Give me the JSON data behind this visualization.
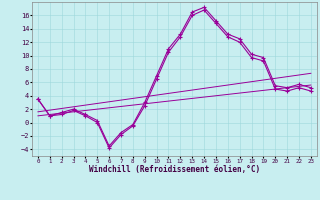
{
  "xlabel": "Windchill (Refroidissement éolien,°C)",
  "background_color": "#c8eef0",
  "grid_color": "#9dd8dc",
  "line_color": "#990099",
  "hours": [
    0,
    1,
    2,
    3,
    4,
    5,
    6,
    7,
    8,
    9,
    10,
    11,
    12,
    13,
    14,
    15,
    16,
    17,
    18,
    19,
    20,
    21,
    22,
    23
  ],
  "curve1": [
    3.5,
    1.0,
    1.5,
    2.0,
    1.2,
    0.3,
    -3.5,
    -1.5,
    -0.3,
    3.0,
    7.0,
    11.0,
    13.2,
    16.5,
    17.2,
    15.2,
    13.2,
    12.5,
    10.2,
    9.7,
    5.5,
    5.2,
    5.7,
    5.2
  ],
  "curve2": [
    3.5,
    1.0,
    1.2,
    1.8,
    1.0,
    0.0,
    -3.8,
    -1.8,
    -0.5,
    2.5,
    6.5,
    10.5,
    12.8,
    16.0,
    16.8,
    14.8,
    12.8,
    12.0,
    9.7,
    9.2,
    5.0,
    4.7,
    5.2,
    4.7
  ],
  "reg1": [
    1.0,
    1.2,
    1.4,
    1.6,
    1.8,
    2.0,
    2.2,
    2.4,
    2.6,
    2.8,
    3.0,
    3.2,
    3.4,
    3.6,
    3.8,
    4.0,
    4.2,
    4.4,
    4.6,
    4.8,
    5.0,
    5.2,
    5.4,
    5.6
  ],
  "reg2": [
    1.6,
    1.85,
    2.1,
    2.35,
    2.6,
    2.85,
    3.1,
    3.35,
    3.6,
    3.85,
    4.1,
    4.35,
    4.6,
    4.85,
    5.1,
    5.35,
    5.6,
    5.85,
    6.1,
    6.35,
    6.6,
    6.85,
    7.1,
    7.35
  ],
  "ylim": [
    -5,
    18
  ],
  "yticks": [
    -4,
    -2,
    0,
    2,
    4,
    6,
    8,
    10,
    12,
    14,
    16
  ],
  "figsize": [
    3.2,
    2.0
  ],
  "dpi": 100
}
